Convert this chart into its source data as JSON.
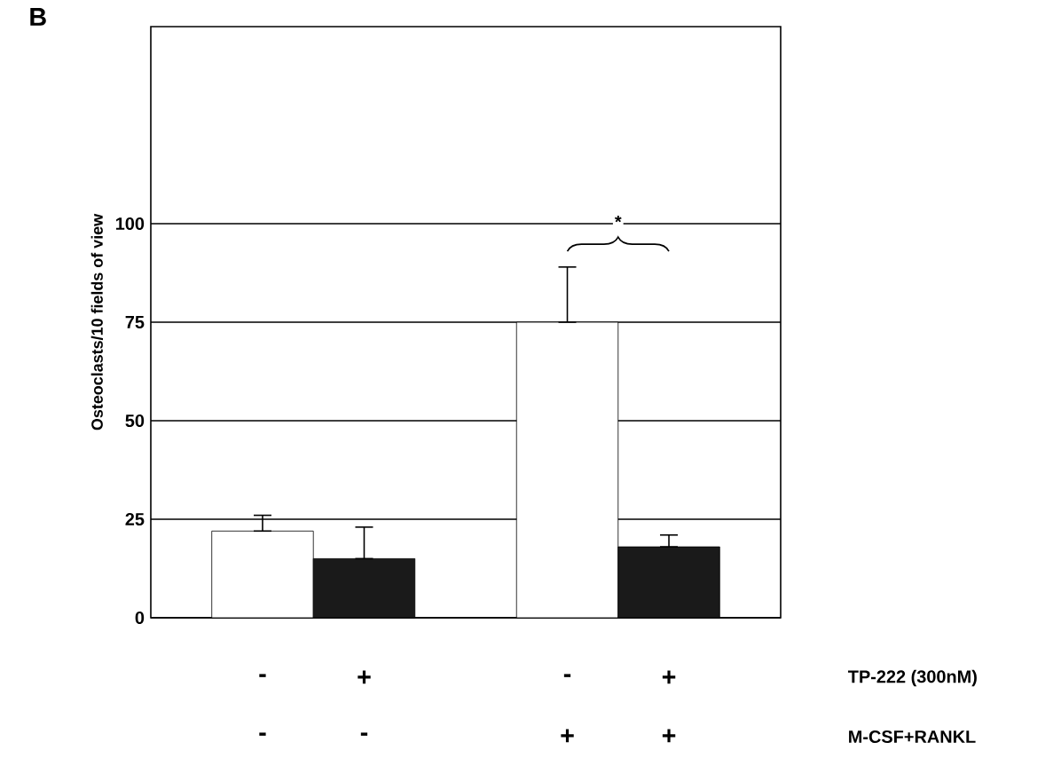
{
  "chart_data": {
    "type": "bar",
    "title": "B",
    "ylabel": "Osteoclasts/10 fields of view",
    "categories": [
      "-",
      "+",
      "-",
      "+"
    ],
    "values": [
      22,
      15,
      75,
      18
    ],
    "colors": [
      "#ffffff",
      "#1a1a1a",
      "#ffffff",
      "#1a1a1a"
    ],
    "errors": [
      [
        22,
        26
      ],
      [
        15,
        23
      ],
      [
        75,
        89
      ],
      [
        18,
        21
      ]
    ],
    "ylim": [
      0,
      150
    ],
    "yticks": [
      0,
      25,
      50,
      75,
      100
    ],
    "grid": "y",
    "annotations": [
      "*",
      "TP-222 (300nM)",
      "M-CSF+RANKL",
      "-",
      "-",
      "+",
      "+"
    ]
  }
}
